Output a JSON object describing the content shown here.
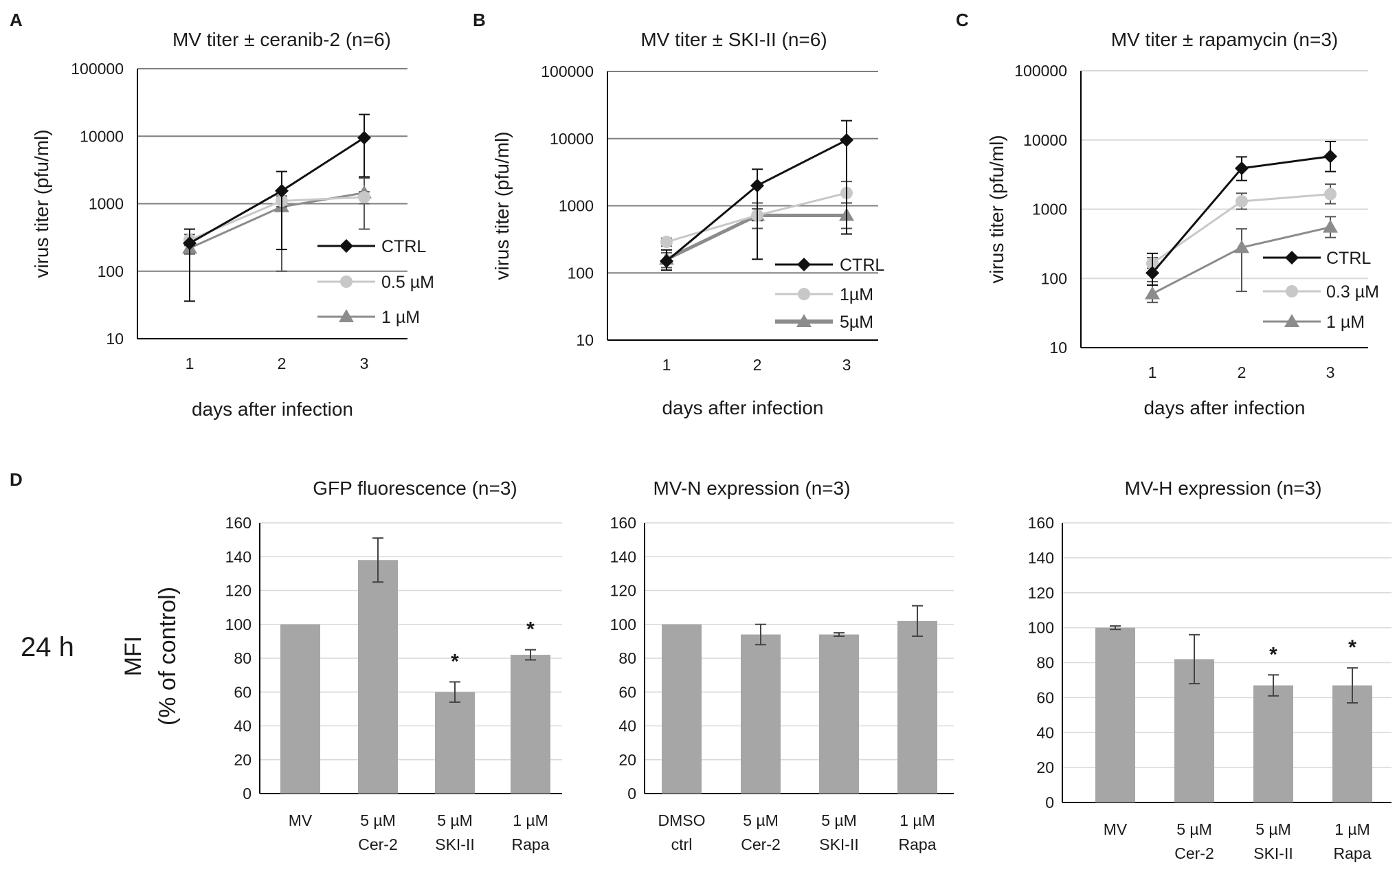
{
  "panels": [
    {
      "letter": "A"
    },
    {
      "letter": "B"
    },
    {
      "letter": "C"
    },
    {
      "letter": "D"
    }
  ],
  "side_label": "24 h",
  "colors": {
    "ctrl": "#111111",
    "low_dose": "#c8c8c8",
    "high_dose": "#8c8c8c",
    "bar": "#a6a6a6",
    "grid_line": "#7f7f7f",
    "grid_light": "#d9d9d9",
    "axis": "#000000"
  },
  "chart_data": [
    {
      "id": "A",
      "type": "line",
      "yscale": "log",
      "title": "MV titer ± ceranib-2 (n=6)",
      "xlabel": "days after infection",
      "ylabel": "virus titer (pfu/ml)",
      "x": [
        1,
        2,
        3
      ],
      "yticks": [
        "10",
        "100",
        "1000",
        "10000",
        "100000"
      ],
      "ylim": [
        10,
        100000
      ],
      "series": [
        {
          "name": "CTRL",
          "marker": "diamond",
          "color_key": "ctrl",
          "values": [
            260,
            1550,
            9500
          ],
          "err_hi": [
            420,
            3000,
            21000
          ],
          "err_lo": [
            36,
            210,
            2500
          ]
        },
        {
          "name": "0.5 µM",
          "marker": "circle",
          "color_key": "low_dose",
          "values": [
            290,
            1100,
            1250
          ],
          "err_hi": [
            350,
            1300,
            1500
          ],
          "err_lo": [
            240,
            900,
            1000
          ]
        },
        {
          "name": "1 µM",
          "marker": "triangle",
          "color_key": "high_dose",
          "values": [
            220,
            900,
            1450
          ],
          "err_hi": [
            280,
            1200,
            2400
          ],
          "err_lo": [
            180,
            100,
            420
          ]
        }
      ]
    },
    {
      "id": "B",
      "type": "line",
      "yscale": "log",
      "title": "MV titer ± SKI-II (n=6)",
      "xlabel": "days after infection",
      "ylabel": "virus titer (pfu/ml)",
      "x": [
        1,
        2,
        3
      ],
      "yticks": [
        "10",
        "100",
        "1000",
        "10000",
        "100000"
      ],
      "ylim": [
        10,
        100000
      ],
      "series": [
        {
          "name": "CTRL",
          "marker": "diamond",
          "color_key": "ctrl",
          "values": [
            150,
            2000,
            9500
          ],
          "err_hi": [
            220,
            3500,
            18500
          ],
          "err_lo": [
            110,
            160,
            380
          ]
        },
        {
          "name": "1µM",
          "marker": "circle",
          "color_key": "low_dose",
          "values": [
            290,
            720,
            1550
          ],
          "err_hi": [
            330,
            900,
            2300
          ],
          "err_lo": [
            250,
            600,
            1100
          ]
        },
        {
          "name": "5µM",
          "marker": "triangle",
          "color_key": "high_dose",
          "values": [
            160,
            720,
            720
          ],
          "err_hi": [
            200,
            1100,
            1100
          ],
          "err_lo": [
            120,
            460,
            460
          ]
        }
      ]
    },
    {
      "id": "C",
      "type": "line",
      "yscale": "log",
      "title": "MV titer ± rapamycin (n=3)",
      "xlabel": "days after infection",
      "ylabel": "virus titer (pfu/ml)",
      "x": [
        1,
        2,
        3
      ],
      "yticks": [
        "10",
        "100",
        "1000",
        "10000",
        "100000"
      ],
      "ylim": [
        10,
        100000
      ],
      "series": [
        {
          "name": "CTRL",
          "marker": "diamond",
          "color_key": "ctrl",
          "values": [
            120,
            3900,
            5800
          ],
          "err_hi": [
            230,
            5700,
            9500
          ],
          "err_lo": [
            80,
            2600,
            3500
          ]
        },
        {
          "name": "0.3 µM",
          "marker": "circle",
          "color_key": "low_dose",
          "values": [
            165,
            1300,
            1650
          ],
          "err_hi": [
            200,
            1700,
            2300
          ],
          "err_lo": [
            140,
            1000,
            1200
          ]
        },
        {
          "name": "1 µM",
          "marker": "triangle",
          "color_key": "high_dose",
          "values": [
            60,
            280,
            550
          ],
          "err_hi": [
            90,
            520,
            780
          ],
          "err_lo": [
            45,
            65,
            390
          ]
        }
      ]
    },
    {
      "id": "D1",
      "type": "bar",
      "title": "GFP fluorescence  (n=3)",
      "ylabel": [
        "MFI",
        "(% of control)"
      ],
      "categories": [
        [
          "MV",
          ""
        ],
        [
          "5 µM",
          "Cer-2"
        ],
        [
          "5 µM",
          "SKI-II"
        ],
        [
          "1 µM",
          "Rapa"
        ]
      ],
      "values": [
        100,
        138,
        60,
        82
      ],
      "err": [
        0,
        13,
        6,
        3
      ],
      "significant": [
        "",
        "",
        "*",
        "*"
      ],
      "ylim": [
        0,
        160
      ],
      "yticks": [
        "0",
        "20",
        "40",
        "60",
        "80",
        "100",
        "120",
        "140",
        "160"
      ]
    },
    {
      "id": "D2",
      "type": "bar",
      "title": "MV-N expression (n=3)",
      "categories": [
        [
          "DMSO",
          "ctrl"
        ],
        [
          "5 µM",
          "Cer-2"
        ],
        [
          "5 µM",
          "SKI-II"
        ],
        [
          "1 µM",
          "Rapa"
        ]
      ],
      "values": [
        100,
        94,
        94,
        102
      ],
      "err": [
        0,
        6,
        1,
        9
      ],
      "significant": [
        "",
        "",
        "",
        ""
      ],
      "ylim": [
        0,
        160
      ],
      "yticks": [
        "0",
        "20",
        "40",
        "60",
        "80",
        "100",
        "120",
        "140",
        "160"
      ]
    },
    {
      "id": "D3",
      "type": "bar",
      "title": "MV-H expression (n=3)",
      "categories": [
        [
          "MV",
          ""
        ],
        [
          "5 µM",
          "Cer-2"
        ],
        [
          "5 µM",
          "SKI-II"
        ],
        [
          "1 µM",
          "Rapa"
        ]
      ],
      "values": [
        100,
        82,
        67,
        67
      ],
      "err": [
        1,
        14,
        6,
        10
      ],
      "significant": [
        "",
        "",
        "*",
        "*"
      ],
      "ylim": [
        0,
        160
      ],
      "yticks": [
        "0",
        "20",
        "40",
        "60",
        "80",
        "100",
        "120",
        "140",
        "160"
      ]
    }
  ]
}
